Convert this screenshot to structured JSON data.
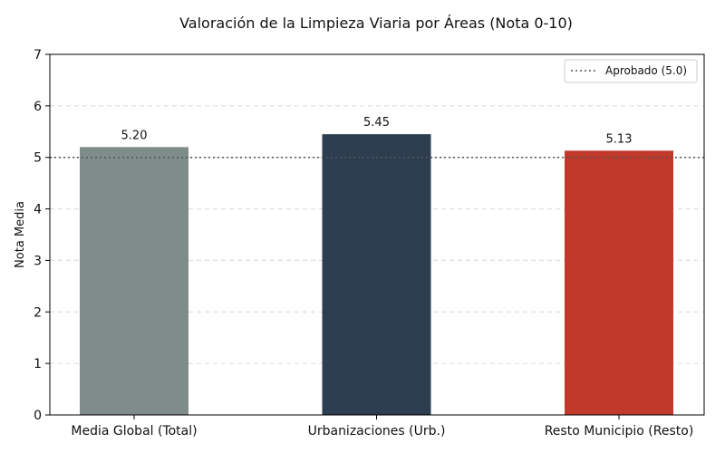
{
  "chart_data": {
    "type": "bar",
    "title": "Valoración de la Limpieza Viaria por Áreas (Nota 0-10)",
    "xlabel": "",
    "ylabel": "Nota Media",
    "categories": [
      "Media Global (Total)",
      "Urbanizaciones (Urb.)",
      "Resto Municipio (Resto)"
    ],
    "values": [
      5.2,
      5.45,
      5.13
    ],
    "value_labels": [
      "5.20",
      "5.45",
      "5.13"
    ],
    "colors": [
      "#7f8c8a",
      "#2c3e50",
      "#c0392b"
    ],
    "ylim": [
      0,
      7
    ],
    "yticks": [
      0,
      1,
      2,
      3,
      4,
      5,
      6,
      7
    ],
    "grid": "y-dashed",
    "reference_line": {
      "value": 5.0,
      "label": "Aprobado (5.0)",
      "style": "dotted",
      "color": "#555555"
    },
    "legend_position": "top-right"
  }
}
